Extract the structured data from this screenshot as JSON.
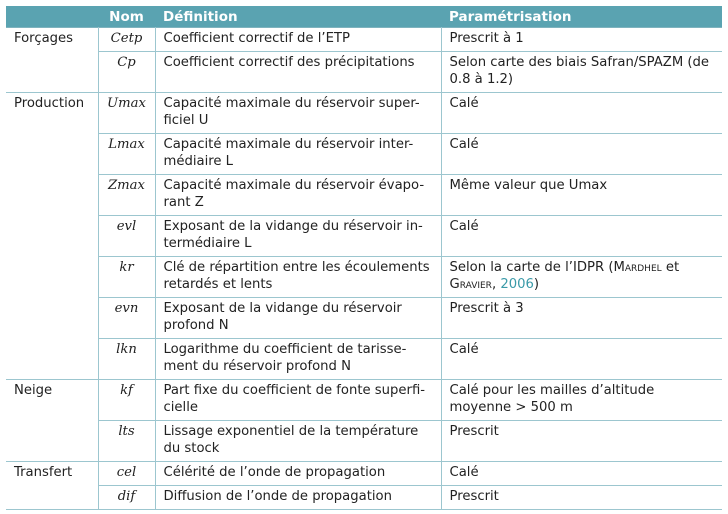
{
  "header": {
    "group": "",
    "nom": "Nom",
    "definition": "Définition",
    "param": "Paramétrisation"
  },
  "rows": [
    {
      "group": "Forçages",
      "nom": "Cetp",
      "definition": "Coefficient correctif de l’ETP",
      "param": "Prescrit à 1"
    },
    {
      "group": "",
      "nom": "Cp",
      "definition": "Coefficient correctif des précipitations",
      "param": "Selon carte des biais Safran/SPAZM (de\n0.8 à 1.2)"
    },
    {
      "group": "Production",
      "nom": "Umax",
      "definition": "Capacité maximale du réservoir super-\nficiel U",
      "param": "Calé"
    },
    {
      "group": "",
      "nom": "Lmax",
      "definition": "Capacité maximale du réservoir inter-\nmédiaire L",
      "param": "Calé"
    },
    {
      "group": "",
      "nom": "Zmax",
      "definition": "Capacité maximale du réservoir évapo-\nrant Z",
      "param": "Même valeur que Umax"
    },
    {
      "group": "",
      "nom": "evl",
      "definition": "Exposant de la vidange du réservoir in-\ntermédiaire L",
      "param": "Calé"
    },
    {
      "group": "",
      "nom": "kr",
      "definition": "Clé de répartition entre les écoulements\nretardés et lents",
      "param_pre": "Selon la carte de l’IDPR (",
      "param_author1": "Mardhel",
      "param_mid": " et\n",
      "param_author2": "Gravier",
      "param_sep": ", ",
      "param_year": "2006",
      "param_post": ")"
    },
    {
      "group": "",
      "nom": "evn",
      "definition": "Exposant de la vidange du réservoir\nprofond N",
      "param": "Prescrit à 3"
    },
    {
      "group": "",
      "nom": "lkn",
      "definition": "Logarithme du coefficient de tarisse-\nment du réservoir profond N",
      "param": "Calé"
    },
    {
      "group": "Neige",
      "nom": "kf",
      "definition": "Part fixe du coefficient de fonte superfi-\ncielle",
      "param": "Calé pour les mailles d’altitude\nmoyenne > 500 m"
    },
    {
      "group": "",
      "nom": "lts",
      "definition": "Lissage exponentiel de la température\ndu stock",
      "param": "Prescrit"
    },
    {
      "group": "Transfert",
      "nom": "cel",
      "definition": "Célérité de l’onde de propagation",
      "param": "Calé"
    },
    {
      "group": "",
      "nom": "dif",
      "definition": "Diffusion de l’onde de propagation",
      "param": "Prescrit"
    }
  ]
}
